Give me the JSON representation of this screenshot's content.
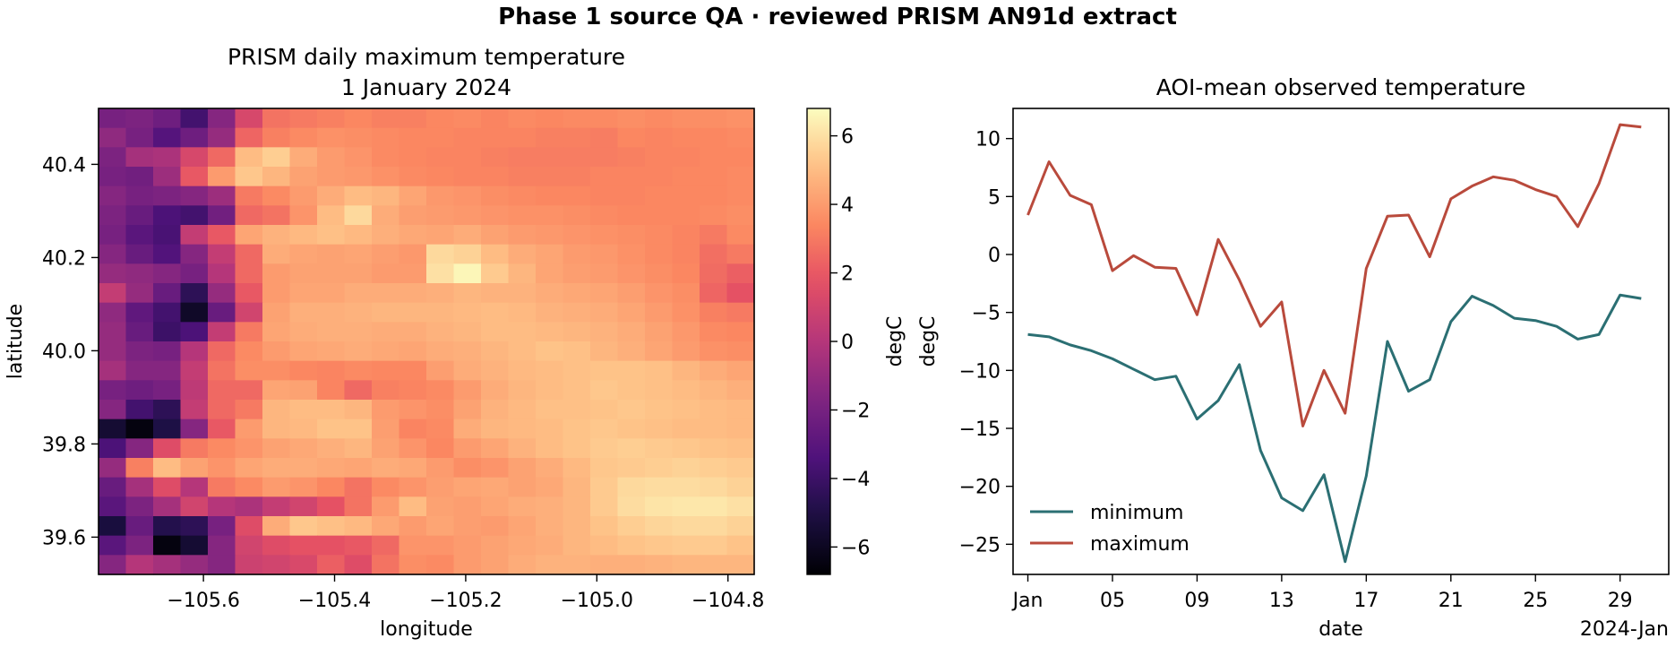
{
  "figure": {
    "suptitle": "Phase 1 source QA · reviewed PRISM AN91d extract"
  },
  "chart_data": [
    {
      "type": "heatmap",
      "title_line1": "PRISM daily maximum temperature",
      "title_line2": "1 January 2024",
      "xlabel": "longitude",
      "ylabel": "latitude",
      "colorbar_label": "degC",
      "colormap": "magma",
      "vmin": -6.8,
      "vmax": 6.8,
      "xlim": [
        -105.76,
        -104.76
      ],
      "ylim": [
        39.52,
        40.52
      ],
      "xticks": [
        {
          "value": -105.6,
          "label": "−105.6"
        },
        {
          "value": -105.4,
          "label": "−105.4"
        },
        {
          "value": -105.2,
          "label": "−105.2"
        },
        {
          "value": -105.0,
          "label": "−105.0"
        },
        {
          "value": -104.8,
          "label": "−104.8"
        }
      ],
      "yticks": [
        {
          "value": 39.6,
          "label": "39.6"
        },
        {
          "value": 39.8,
          "label": "39.8"
        },
        {
          "value": 40.0,
          "label": "40.0"
        },
        {
          "value": 40.2,
          "label": "40.2"
        },
        {
          "value": 40.4,
          "label": "40.4"
        }
      ],
      "colorbar_ticks": [
        {
          "value": -6,
          "label": "−6"
        },
        {
          "value": -4,
          "label": "−4"
        },
        {
          "value": -2,
          "label": "−2"
        },
        {
          "value": 0,
          "label": "0"
        },
        {
          "value": 2,
          "label": "2"
        },
        {
          "value": 4,
          "label": "4"
        },
        {
          "value": 6,
          "label": "6"
        }
      ],
      "grid_rows": 24,
      "grid_cols": 24,
      "row_order": "north-to-south",
      "values": [
        [
          -2.0,
          -1.8,
          -2.3,
          -3.8,
          -1.5,
          1.2,
          2.8,
          3.0,
          3.2,
          3.4,
          3.2,
          3.2,
          3.4,
          3.5,
          3.3,
          3.5,
          3.4,
          3.5,
          3.5,
          3.6,
          3.5,
          3.6,
          3.6,
          3.7
        ],
        [
          -1.2,
          -2.0,
          -3.2,
          -2.3,
          -1.0,
          2.4,
          3.2,
          3.5,
          3.7,
          3.6,
          3.5,
          3.4,
          3.4,
          3.3,
          3.3,
          3.3,
          3.2,
          3.2,
          3.1,
          3.4,
          3.3,
          3.4,
          3.4,
          3.5
        ],
        [
          -1.8,
          -0.5,
          -0.3,
          1.2,
          2.5,
          5.0,
          5.5,
          4.5,
          4.0,
          3.8,
          3.5,
          3.4,
          3.3,
          3.3,
          3.2,
          3.1,
          3.1,
          3.1,
          3.1,
          3.2,
          3.3,
          3.3,
          3.4,
          3.4
        ],
        [
          -2.0,
          -2.2,
          -0.8,
          2.0,
          4.0,
          5.3,
          4.8,
          4.2,
          4.0,
          3.9,
          3.7,
          3.5,
          3.4,
          3.3,
          3.3,
          3.2,
          3.2,
          3.2,
          3.3,
          3.3,
          3.3,
          3.4,
          3.4,
          3.5
        ],
        [
          -1.5,
          -2.0,
          -1.8,
          -1.5,
          -0.8,
          3.0,
          3.5,
          4.0,
          4.5,
          5.0,
          4.8,
          4.3,
          3.9,
          3.8,
          3.6,
          3.5,
          3.4,
          3.4,
          3.3,
          3.3,
          3.4,
          3.4,
          3.4,
          3.5
        ],
        [
          -1.8,
          -2.5,
          -3.5,
          -3.8,
          -2.2,
          2.5,
          2.8,
          3.8,
          5.0,
          5.8,
          4.5,
          4.1,
          4.0,
          3.9,
          3.8,
          3.7,
          3.7,
          3.6,
          3.5,
          3.4,
          3.4,
          3.4,
          3.5,
          3.6
        ],
        [
          -2.0,
          -3.0,
          -3.6,
          0.5,
          2.0,
          4.3,
          4.7,
          4.9,
          5.1,
          4.9,
          4.6,
          4.4,
          4.3,
          4.5,
          4.2,
          4.0,
          3.9,
          3.8,
          3.7,
          3.6,
          3.5,
          3.3,
          3.0,
          3.5
        ],
        [
          -1.5,
          -2.5,
          -3.3,
          -1.5,
          0.5,
          2.5,
          4.5,
          4.3,
          4.2,
          4.3,
          4.1,
          3.9,
          5.8,
          5.6,
          5.0,
          4.5,
          4.3,
          4.0,
          3.9,
          3.7,
          3.5,
          3.3,
          2.7,
          3.0
        ],
        [
          -1.0,
          -1.2,
          -1.5,
          -2.0,
          0.0,
          2.5,
          4.0,
          4.2,
          4.2,
          4.2,
          4.0,
          4.0,
          6.0,
          6.6,
          5.4,
          4.8,
          4.3,
          4.1,
          4.0,
          3.8,
          3.6,
          3.4,
          2.6,
          2.2
        ],
        [
          0.5,
          -1.0,
          -2.5,
          -4.5,
          -1.0,
          2.0,
          4.0,
          4.3,
          4.3,
          4.5,
          4.5,
          4.5,
          4.6,
          4.8,
          4.7,
          4.7,
          4.5,
          4.4,
          4.3,
          4.1,
          3.8,
          3.6,
          2.4,
          1.8
        ],
        [
          -1.2,
          -2.8,
          -3.8,
          -5.8,
          -2.5,
          1.0,
          4.2,
          4.6,
          4.6,
          4.7,
          4.8,
          4.8,
          4.8,
          4.9,
          5.0,
          4.9,
          4.7,
          4.6,
          4.5,
          4.3,
          4.0,
          3.7,
          3.2,
          3.0
        ],
        [
          -1.0,
          -2.5,
          -4.0,
          -3.5,
          0.5,
          3.0,
          4.3,
          4.5,
          4.6,
          4.6,
          4.5,
          4.5,
          4.7,
          4.8,
          5.0,
          5.0,
          4.9,
          4.8,
          4.7,
          4.5,
          4.2,
          3.9,
          3.5,
          3.4
        ],
        [
          -1.0,
          -1.8,
          -2.0,
          0.0,
          2.5,
          3.5,
          4.0,
          4.3,
          4.4,
          4.5,
          4.4,
          4.3,
          4.5,
          4.6,
          4.8,
          5.0,
          5.2,
          5.1,
          4.8,
          4.6,
          4.3,
          4.0,
          3.7,
          3.6
        ],
        [
          -0.5,
          -1.5,
          -1.5,
          0.5,
          2.8,
          3.6,
          3.6,
          3.4,
          3.3,
          3.5,
          3.4,
          3.4,
          4.1,
          4.5,
          4.7,
          4.9,
          5.0,
          5.1,
          5.2,
          5.2,
          5.1,
          4.8,
          4.5,
          4.3
        ],
        [
          -2.0,
          -2.3,
          -2.0,
          0.3,
          2.5,
          2.5,
          4.3,
          4.2,
          3.3,
          2.5,
          3.2,
          3.3,
          3.5,
          4.0,
          4.5,
          4.8,
          5.0,
          5.1,
          5.3,
          5.2,
          5.1,
          5.0,
          4.8,
          4.6
        ],
        [
          -1.5,
          -3.8,
          -4.5,
          0.5,
          2.5,
          3.0,
          4.8,
          5.0,
          5.0,
          4.8,
          4.0,
          3.8,
          3.6,
          4.2,
          4.7,
          4.9,
          5.1,
          5.1,
          5.2,
          5.3,
          5.2,
          5.1,
          5.0,
          4.9
        ],
        [
          -5.5,
          -6.5,
          -5.0,
          -1.5,
          2.0,
          4.0,
          4.8,
          4.9,
          5.2,
          5.2,
          4.1,
          3.3,
          3.5,
          4.5,
          4.8,
          4.9,
          5.0,
          5.2,
          5.3,
          5.2,
          5.1,
          5.0,
          5.0,
          4.9
        ],
        [
          -3.5,
          -1.5,
          1.5,
          3.0,
          3.5,
          3.8,
          4.2,
          4.4,
          4.6,
          4.8,
          4.2,
          3.8,
          3.4,
          4.0,
          4.3,
          4.7,
          5.0,
          5.2,
          5.4,
          5.5,
          5.4,
          5.3,
          5.2,
          5.1
        ],
        [
          -1.0,
          3.2,
          5.0,
          4.2,
          3.8,
          4.3,
          4.5,
          4.5,
          4.4,
          4.3,
          4.5,
          4.4,
          4.0,
          3.6,
          3.8,
          4.2,
          4.5,
          4.9,
          5.3,
          5.4,
          5.5,
          5.6,
          5.5,
          5.4
        ],
        [
          -2.5,
          -0.5,
          1.5,
          0.0,
          3.0,
          3.5,
          4.0,
          3.8,
          3.4,
          2.8,
          3.5,
          3.8,
          4.1,
          4.3,
          4.4,
          4.2,
          4.4,
          4.8,
          5.4,
          5.8,
          5.9,
          5.9,
          5.8,
          5.6
        ],
        [
          -3.0,
          -1.8,
          -0.5,
          1.0,
          0.0,
          -0.3,
          0.5,
          1.0,
          1.8,
          2.8,
          4.0,
          5.0,
          4.2,
          4.1,
          4.3,
          4.5,
          4.6,
          4.8,
          5.4,
          5.9,
          6.1,
          6.2,
          6.2,
          6.0
        ],
        [
          -5.2,
          -2.5,
          -4.8,
          -4.5,
          -2.0,
          1.5,
          4.5,
          5.3,
          5.1,
          4.9,
          4.4,
          4.0,
          4.3,
          4.1,
          4.0,
          4.3,
          4.6,
          4.8,
          5.2,
          5.5,
          5.7,
          5.8,
          5.8,
          5.6
        ],
        [
          -3.0,
          -1.8,
          -6.5,
          -5.5,
          -1.5,
          1.0,
          1.5,
          1.8,
          1.8,
          2.0,
          2.5,
          3.8,
          3.8,
          4.0,
          4.2,
          4.4,
          4.5,
          4.8,
          5.0,
          5.2,
          5.3,
          5.4,
          5.4,
          5.2
        ],
        [
          -1.5,
          0.0,
          -0.5,
          -1.0,
          -1.5,
          0.8,
          1.0,
          1.3,
          2.2,
          1.5,
          2.8,
          3.6,
          3.5,
          4.0,
          4.2,
          4.5,
          4.7,
          4.7,
          4.6,
          4.6,
          4.7,
          4.8,
          4.8,
          4.8
        ]
      ]
    },
    {
      "type": "line",
      "title": "AOI-mean observed temperature",
      "xlabel": "date",
      "ylabel": "degC",
      "x_offset_label": "2024-Jan",
      "xlim": [
        0.3,
        31.3
      ],
      "ylim": [
        -27.6,
        12.6
      ],
      "xticks": [
        {
          "value": 1,
          "label": "Jan"
        },
        {
          "value": 5,
          "label": "05"
        },
        {
          "value": 9,
          "label": "09"
        },
        {
          "value": 13,
          "label": "13"
        },
        {
          "value": 17,
          "label": "17"
        },
        {
          "value": 21,
          "label": "21"
        },
        {
          "value": 25,
          "label": "25"
        },
        {
          "value": 29,
          "label": "29"
        }
      ],
      "yticks": [
        {
          "value": 10,
          "label": "10"
        },
        {
          "value": 5,
          "label": "5"
        },
        {
          "value": 0,
          "label": "0"
        },
        {
          "value": -5,
          "label": "−5"
        },
        {
          "value": -10,
          "label": "−10"
        },
        {
          "value": -15,
          "label": "−15"
        },
        {
          "value": -20,
          "label": "−20"
        },
        {
          "value": -25,
          "label": "−25"
        }
      ],
      "legend_position": "lower-left",
      "grid": false,
      "x": [
        1,
        2,
        3,
        4,
        5,
        6,
        7,
        8,
        9,
        10,
        11,
        12,
        13,
        14,
        15,
        16,
        17,
        18,
        19,
        20,
        21,
        22,
        23,
        24,
        25,
        26,
        27,
        28,
        29,
        30
      ],
      "series": [
        {
          "name": "minimum",
          "color": "#2b6f73",
          "values": [
            -6.9,
            -7.1,
            -7.8,
            -8.3,
            -9.0,
            -9.9,
            -10.8,
            -10.5,
            -14.2,
            -12.6,
            -9.5,
            -16.9,
            -21.0,
            -22.1,
            -19.0,
            -26.5,
            -19.1,
            -7.5,
            -11.8,
            -10.8,
            -5.8,
            -3.6,
            -4.4,
            -5.5,
            -5.7,
            -6.2,
            -7.3,
            -6.9,
            -3.5,
            -3.8
          ]
        },
        {
          "name": "maximum",
          "color": "#b94a3c",
          "values": [
            3.4,
            8.0,
            5.1,
            4.3,
            -1.4,
            -0.1,
            -1.1,
            -1.2,
            -5.2,
            1.3,
            -2.2,
            -6.2,
            -4.1,
            -14.8,
            -10.0,
            -13.7,
            -1.2,
            3.3,
            3.4,
            -0.2,
            4.8,
            5.9,
            6.7,
            6.4,
            5.6,
            5.0,
            2.4,
            6.1,
            11.2,
            11.0
          ]
        }
      ]
    }
  ]
}
